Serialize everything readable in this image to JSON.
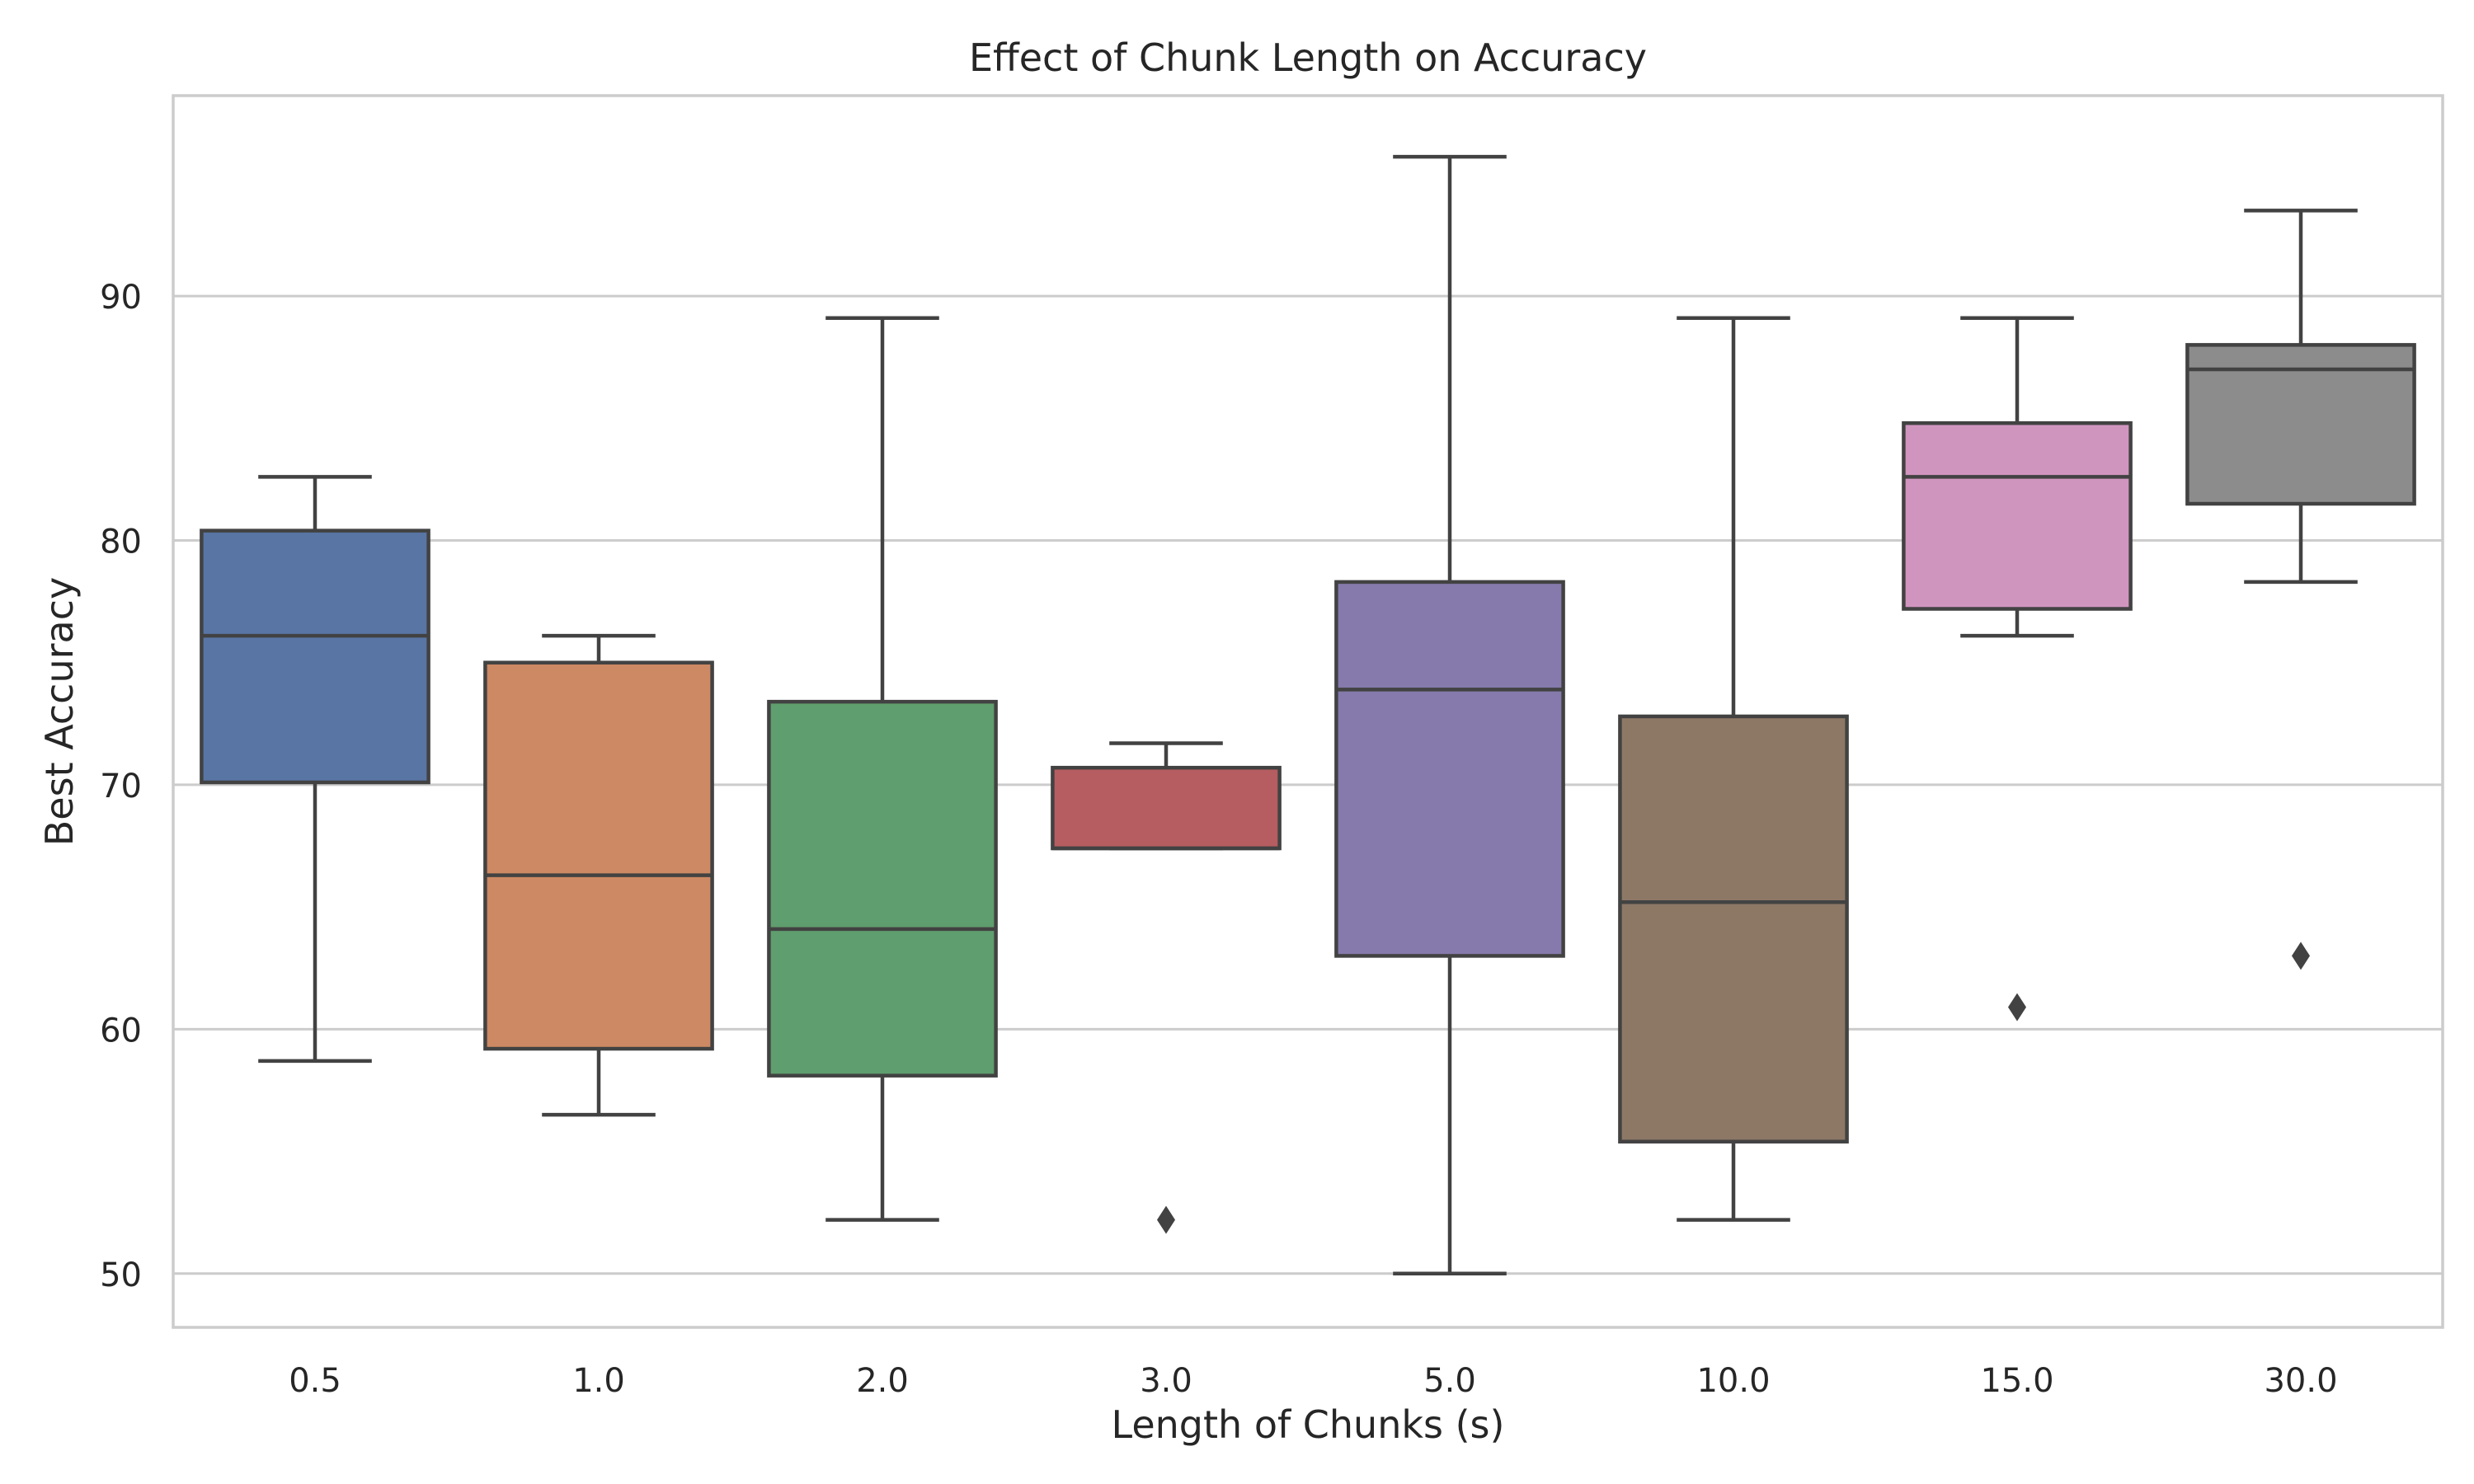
{
  "chart_data": {
    "type": "box",
    "title": "Effect of Chunk Length on Accuracy",
    "xlabel": "Length of Chunks (s)",
    "ylabel": "Best Accuracy",
    "categories": [
      "0.5",
      "1.0",
      "2.0",
      "3.0",
      "5.0",
      "10.0",
      "15.0",
      "30.0"
    ],
    "ylim": [
      47.8,
      98.2
    ],
    "yticks": [
      50,
      60,
      70,
      80,
      90
    ],
    "grid": "horizontal",
    "legend": "none",
    "colors": [
      "#5875a4",
      "#cc8963",
      "#5f9e6e",
      "#b55d60",
      "#857aab",
      "#8d7866",
      "#d095bf",
      "#8c8c8c"
    ],
    "boxes": [
      {
        "category": "0.5",
        "whisker_low": 58.7,
        "q1": 70.1,
        "median": 76.1,
        "q3": 80.4,
        "whisker_high": 82.6,
        "outliers": []
      },
      {
        "category": "1.0",
        "whisker_low": 56.5,
        "q1": 59.2,
        "median": 66.3,
        "q3": 75.0,
        "whisker_high": 76.1,
        "outliers": []
      },
      {
        "category": "2.0",
        "whisker_low": 52.2,
        "q1": 58.1,
        "median": 64.1,
        "q3": 73.4,
        "whisker_high": 89.1,
        "outliers": []
      },
      {
        "category": "3.0",
        "whisker_low": 67.4,
        "q1": 67.4,
        "median": 67.4,
        "q3": 70.7,
        "whisker_high": 71.7,
        "outliers": [
          52.2
        ]
      },
      {
        "category": "5.0",
        "whisker_low": 50.0,
        "q1": 63.0,
        "median": 73.9,
        "q3": 78.3,
        "whisker_high": 95.7,
        "outliers": []
      },
      {
        "category": "10.0",
        "whisker_low": 52.2,
        "q1": 55.4,
        "median": 65.2,
        "q3": 72.8,
        "whisker_high": 89.1,
        "outliers": []
      },
      {
        "category": "15.0",
        "whisker_low": 76.1,
        "q1": 77.2,
        "median": 82.6,
        "q3": 84.8,
        "whisker_high": 89.1,
        "outliers": [
          60.9
        ]
      },
      {
        "category": "30.0",
        "whisker_low": 78.3,
        "q1": 81.5,
        "median": 87.0,
        "q3": 88.0,
        "whisker_high": 93.5,
        "outliers": [
          63.0
        ]
      }
    ]
  }
}
